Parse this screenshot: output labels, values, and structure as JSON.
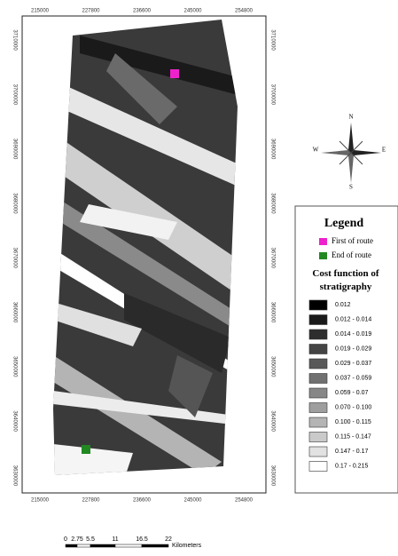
{
  "map": {
    "top_ticks": [
      "215000",
      "227800",
      "236600",
      "245000",
      "254800"
    ],
    "bottom_ticks": [
      "215000",
      "227800",
      "236600",
      "245000",
      "254800"
    ],
    "left_ticks": [
      "3710000",
      "3700000",
      "3690000",
      "3680000",
      "3670000",
      "3660000",
      "3650000",
      "3640000",
      "3630000"
    ],
    "right_ticks": [
      "3710000",
      "3700000",
      "3690000",
      "3680000",
      "3670000",
      "3660000",
      "3650000",
      "3640000",
      "3630000"
    ]
  },
  "compass": {
    "north": "N",
    "south": "S",
    "east": "E",
    "west": "W"
  },
  "legend": {
    "title": "Legend",
    "first": {
      "label": "First of route",
      "color": "#ee22cc"
    },
    "end": {
      "label": "End of route",
      "color": "#228822"
    },
    "subtitle": "Cost function of stratigraphy",
    "classes": [
      {
        "label": "0.012",
        "color": "#000000"
      },
      {
        "label": "0.012 - 0.014",
        "color": "#1a1a1a"
      },
      {
        "label": "0.014 - 0.019",
        "color": "#2e2e2e"
      },
      {
        "label": "0.019 - 0.029",
        "color": "#444444"
      },
      {
        "label": "0.029 - 0.037",
        "color": "#595959"
      },
      {
        "label": "0.037 - 0.059",
        "color": "#707070"
      },
      {
        "label": "0.059 - 0.07",
        "color": "#878787"
      },
      {
        "label": "0.070 - 0.100",
        "color": "#9e9e9e"
      },
      {
        "label": "0.100 - 0.115",
        "color": "#b4b4b4"
      },
      {
        "label": "0.115 - 0.147",
        "color": "#cacaca"
      },
      {
        "label": "0.147 - 0.17",
        "color": "#e2e2e2"
      },
      {
        "label": "0.17 - 0.215",
        "color": "#ffffff"
      }
    ]
  },
  "scale": {
    "labels": [
      "0",
      "2.75",
      "5.5",
      "11",
      "16.5",
      "22"
    ],
    "unit": "Kilometers"
  }
}
